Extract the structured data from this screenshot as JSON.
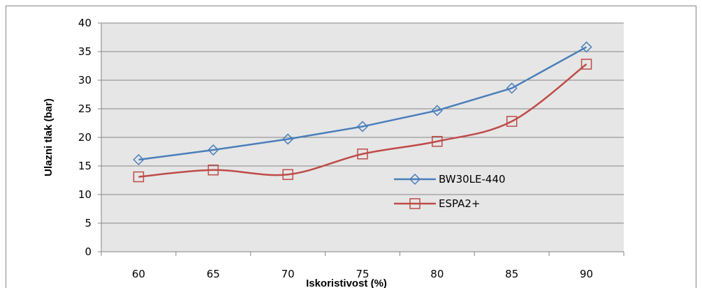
{
  "chart_data": {
    "type": "line",
    "x": [
      60,
      65,
      70,
      75,
      80,
      85,
      90
    ],
    "series": [
      {
        "name": "BW30LE-440",
        "values": [
          16.1,
          17.8,
          19.7,
          21.9,
          24.7,
          28.6,
          35.8
        ],
        "color": "#4a7ebb",
        "marker": "diamond"
      },
      {
        "name": "ESPA2+",
        "values": [
          13.1,
          14.3,
          13.5,
          17.1,
          19.3,
          22.8,
          32.8
        ],
        "color": "#be4b48",
        "marker": "square"
      }
    ],
    "xlabel": "Iskoristivost (%)",
    "ylabel": "Ulazni tlak (bar)",
    "ylim": [
      0,
      40
    ],
    "yticks": [
      0,
      5,
      10,
      15,
      20,
      25,
      30,
      35,
      40
    ],
    "xtick_labels": [
      "60",
      "65",
      "70",
      "75",
      "80",
      "85",
      "90"
    ],
    "grid": "horizontal",
    "plot_background": "#e6e6e6",
    "legend": "inside-right"
  }
}
